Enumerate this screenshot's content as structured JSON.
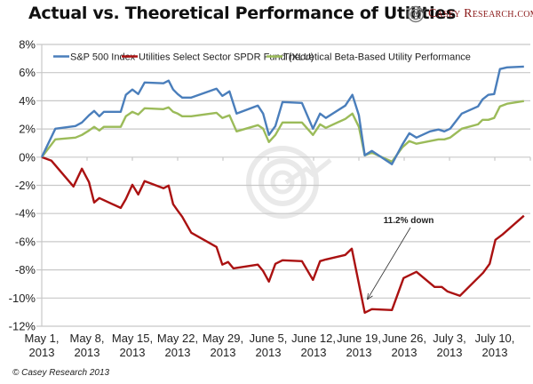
{
  "header": {
    "title": "Actual vs. Theoretical Performance of Utilities",
    "logo_text": "Casey Research.com"
  },
  "footer": {
    "copyright": "© Casey Research 2013"
  },
  "chart_data": {
    "type": "line",
    "title": "Actual vs. Theoretical Performance of Utilities",
    "xlabel": "",
    "ylabel": "",
    "x_unit": "days since May 1, 2013",
    "xlim": [
      0,
      74.5
    ],
    "ylim": [
      -12,
      8
    ],
    "y_ticks": [
      8,
      6,
      4,
      2,
      0,
      -2,
      -4,
      -6,
      -8,
      -10,
      -12
    ],
    "y_tick_labels": [
      "8%",
      "6%",
      "4%",
      "2%",
      "0%",
      "-2%",
      "-4%",
      "-6%",
      "-8%",
      "-10%",
      "-12%"
    ],
    "x_ticks": [
      0,
      7,
      14,
      21,
      28,
      35,
      42,
      49,
      56,
      63,
      70
    ],
    "x_tick_labels": [
      [
        "May 1,",
        "2013"
      ],
      [
        "May 8,",
        "2013"
      ],
      [
        "May 15,",
        "2013"
      ],
      [
        "May 22,",
        "2013"
      ],
      [
        "May 29,",
        "2013"
      ],
      [
        "June 5,",
        "2013"
      ],
      [
        "June 12,",
        "2013"
      ],
      [
        "June 19,",
        "2013"
      ],
      [
        "June 26,",
        "2013"
      ],
      [
        "July 3,",
        "2013"
      ],
      [
        "July 10,",
        "2013"
      ]
    ],
    "grid": "horizontal",
    "legend_position": "top",
    "series": [
      {
        "name": "S&P 500 Index",
        "color": "#4a7ebb",
        "x": [
          0,
          2.1,
          5.2,
          6.2,
          7.3,
          8.1,
          8.9,
          9.6,
          12.2,
          13.0,
          14.0,
          14.9,
          15.9,
          18.8,
          19.6,
          20.3,
          21.0,
          21.7,
          23.1,
          27.0,
          27.9,
          29.0,
          30.1,
          33.4,
          34.2,
          35.1,
          36.1,
          37.2,
          40.2,
          41.9,
          43.0,
          43.9,
          46.9,
          48.0,
          49.0,
          49.9,
          51.0,
          54.1,
          55.7,
          56.8,
          57.9,
          60.0,
          61.3,
          62.2,
          63.1,
          64.9,
          67.4,
          68.1,
          69.0,
          69.9,
          70.8,
          71.9,
          75.5
        ],
        "values": [
          0,
          2.02,
          2.21,
          2.46,
          2.97,
          3.28,
          2.9,
          3.22,
          3.22,
          4.42,
          4.8,
          4.48,
          5.3,
          5.24,
          5.43,
          4.8,
          4.48,
          4.23,
          4.23,
          4.86,
          4.35,
          4.67,
          3.09,
          3.66,
          3.09,
          1.58,
          2.21,
          3.91,
          3.85,
          2.02,
          3.09,
          2.78,
          3.66,
          4.42,
          2.97,
          0.13,
          0.44,
          -0.5,
          0.88,
          1.7,
          1.39,
          1.83,
          1.96,
          1.83,
          2.02,
          3.09,
          3.6,
          4.1,
          4.42,
          4.48,
          6.25,
          6.37,
          6.43
        ]
      },
      {
        "name": "Utilities Select Sector SPDR Fund (XLU)",
        "color": "#aa1111",
        "x": [
          0,
          1.5,
          4.9,
          6.2,
          7.3,
          8.1,
          8.9,
          12.2,
          13.0,
          14.0,
          14.9,
          15.9,
          18.8,
          19.6,
          20.3,
          21.0,
          21.7,
          23.1,
          27.0,
          27.9,
          28.8,
          29.6,
          33.4,
          34.2,
          35.1,
          36.1,
          37.2,
          40.2,
          41.9,
          43.0,
          43.9,
          46.9,
          47.9,
          49.9,
          51.0,
          54.1,
          55.9,
          57.9,
          60.7,
          61.8,
          62.7,
          64.6,
          68.2,
          69.2,
          70.1,
          71.2,
          75.5
        ],
        "values": [
          0,
          -0.25,
          -2.08,
          -0.82,
          -1.77,
          -3.22,
          -2.9,
          -3.6,
          -2.97,
          -1.96,
          -2.65,
          -1.7,
          -2.21,
          -2.02,
          -3.34,
          -3.79,
          -4.23,
          -5.36,
          -6.37,
          -7.63,
          -7.44,
          -7.89,
          -7.63,
          -8.08,
          -8.83,
          -7.57,
          -7.32,
          -7.38,
          -8.71,
          -7.38,
          -7.26,
          -6.94,
          -6.5,
          -11.04,
          -10.79,
          -10.85,
          -8.58,
          -8.14,
          -9.21,
          -9.21,
          -9.53,
          -9.84,
          -8.2,
          -7.57,
          -5.87,
          -5.49,
          -4.16
        ]
      },
      {
        "name": "Theoretical Beta-Based Utility Performance",
        "color": "#9bbb59",
        "x": [
          0,
          2.1,
          5.2,
          6.2,
          7.3,
          8.1,
          8.9,
          9.6,
          12.2,
          13.0,
          14.0,
          14.9,
          15.9,
          18.8,
          19.6,
          20.3,
          21.0,
          21.7,
          23.1,
          27.0,
          27.9,
          29.0,
          30.1,
          33.4,
          34.2,
          35.1,
          36.1,
          37.2,
          40.2,
          41.9,
          43.0,
          43.9,
          46.9,
          48.0,
          49.0,
          49.9,
          51.0,
          54.1,
          55.7,
          56.8,
          57.9,
          60.0,
          61.3,
          62.2,
          63.1,
          64.9,
          67.4,
          68.1,
          69.0,
          69.9,
          70.8,
          71.9,
          75.5
        ],
        "values": [
          0,
          1.26,
          1.39,
          1.58,
          1.89,
          2.15,
          1.89,
          2.15,
          2.15,
          2.9,
          3.22,
          3.03,
          3.47,
          3.41,
          3.53,
          3.22,
          3.09,
          2.9,
          2.9,
          3.15,
          2.78,
          2.97,
          1.83,
          2.27,
          2.02,
          1.07,
          1.58,
          2.46,
          2.46,
          1.58,
          2.33,
          2.08,
          2.71,
          3.09,
          2.15,
          0.13,
          0.32,
          -0.32,
          0.69,
          1.14,
          0.95,
          1.14,
          1.26,
          1.26,
          1.39,
          2.02,
          2.33,
          2.65,
          2.65,
          2.78,
          3.6,
          3.79,
          3.98
        ]
      }
    ],
    "annotations": [
      {
        "text": "11.2% down",
        "series": "Utilities Select Sector SPDR Fund (XLU)",
        "points_to": {
          "x": 50.3,
          "value": -10.1
        }
      }
    ]
  }
}
